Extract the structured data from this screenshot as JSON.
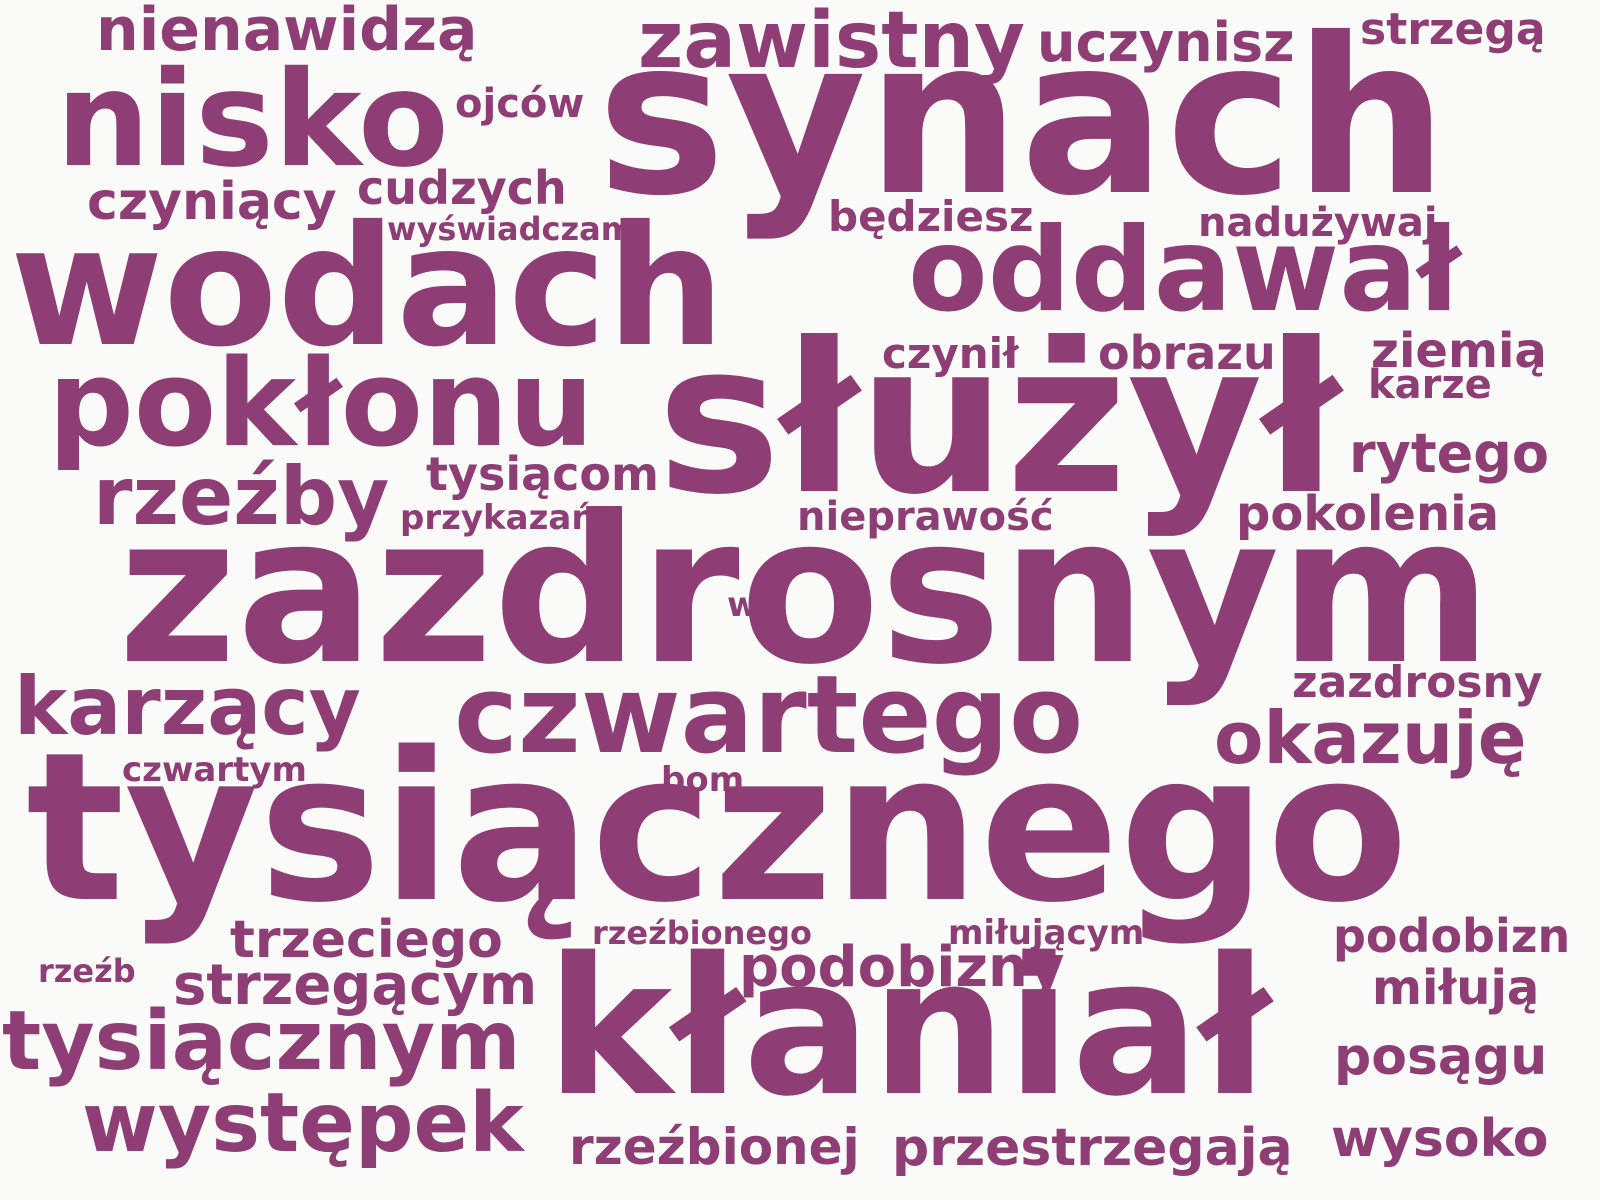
{
  "color": "#8e3d75",
  "background": "#fafaf8",
  "words": [
    "nienawidzą",
    "zawistny",
    "uczynisz",
    "strzegą",
    "synach",
    "nisko",
    "ojców",
    "czyniący",
    "cudzych",
    "wyświadczam",
    "będziesz",
    "nadużywaj",
    "wodach",
    "oddawał",
    "czynił",
    "obrazu",
    "ziemią",
    "karze",
    "pokłonu",
    "służył",
    "rytego",
    "tysiącom",
    "rzeźby",
    "przykazań",
    "nieprawość",
    "pokolenia",
    "zazdrosnym",
    "wj",
    "zazdrosny",
    "karzący",
    "czwartego",
    "okazuję",
    "czwartym",
    "bom",
    "tysiącznego",
    "rzeźbionego",
    "miłującym",
    "podobizn",
    "trzeciego",
    "rzeźb",
    "podobizny",
    "strzegącym",
    "miłują",
    "kłaniał",
    "tysiącznym",
    "posągu",
    "występek",
    "rzeźbionej",
    "przestrzegają",
    "wysoko"
  ]
}
